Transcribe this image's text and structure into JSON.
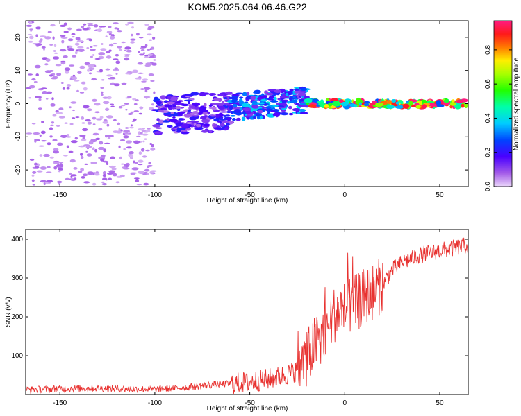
{
  "title": "KOM5.2025.064.06.46.G22",
  "colors": {
    "snr_line": "#e8312f",
    "frame": "#000000",
    "low_amplitude": "#c9a0ee",
    "mid_amplitude": "#6a12d8"
  },
  "chart_data": [
    {
      "type": "heatmap",
      "xlabel": "Height of straight line (km)",
      "ylabel": "Frequency (Hz)",
      "xlim": [
        -168,
        65
      ],
      "ylim": [
        -25,
        25
      ],
      "xticks": [
        -150,
        -100,
        -50,
        0,
        50
      ],
      "yticks": [
        -20,
        -10,
        0,
        10,
        20
      ],
      "colorbar": {
        "label": "Normalized spectral amplitude",
        "range": [
          0,
          0.97
        ],
        "ticks": [
          0.0,
          0.2,
          0.4,
          0.6,
          0.8
        ],
        "colormap": "rainbow (violet-blue-cyan-green-yellow-red-magenta)"
      },
      "bands": [
        {
          "x_range": [
            -168,
            -100
          ],
          "freq_range": [
            -25,
            25
          ],
          "amplitude": 0.05,
          "description": "scattered noise"
        },
        {
          "x_range": [
            -100,
            -60
          ],
          "freq_range": [
            -10,
            2
          ],
          "amplitude": 0.15
        },
        {
          "x_range": [
            -60,
            -20
          ],
          "freq_range": [
            -5,
            3
          ],
          "amplitude": 0.25
        },
        {
          "x_range": [
            -20,
            65
          ],
          "freq_range": [
            -1,
            1
          ],
          "amplitude": 0.6
        }
      ]
    },
    {
      "type": "line",
      "xlabel": "Height of straight line (km)",
      "ylabel": "SNR (v/v)",
      "xlim": [
        -168,
        65
      ],
      "ylim": [
        0,
        425
      ],
      "xticks": [
        -150,
        -100,
        -50,
        0,
        50
      ],
      "yticks": [
        100,
        200,
        300,
        400
      ],
      "series": [
        {
          "x": [
            -168,
            -150,
            -130,
            -110,
            -100,
            -90,
            -80,
            -70,
            -60,
            -50,
            -45,
            -40,
            -35,
            -30,
            -25,
            -20,
            -15,
            -10,
            -5,
            0,
            5,
            10,
            15,
            20,
            25,
            30,
            40,
            50,
            60,
            65
          ],
          "values": [
            12,
            15,
            16,
            14,
            13,
            16,
            20,
            25,
            28,
            32,
            36,
            40,
            45,
            52,
            62,
            95,
            135,
            170,
            210,
            220,
            232,
            250,
            265,
            285,
            320,
            340,
            360,
            370,
            380,
            385
          ]
        }
      ]
    }
  ]
}
